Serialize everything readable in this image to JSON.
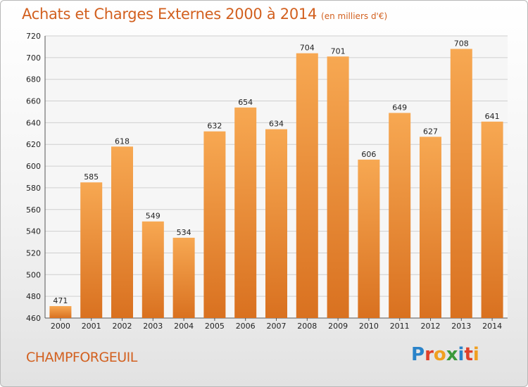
{
  "title": "Achats et Charges Externes 2000 à 2014",
  "unit_label": "(en milliers d'€)",
  "commune": "CHAMPFORGEUIL",
  "logo": {
    "text": "Proxiti",
    "letters": [
      {
        "ch": "P",
        "color": "#2a83c9"
      },
      {
        "ch": "r",
        "color": "#e0402a"
      },
      {
        "ch": "o",
        "color": "#f0a020"
      },
      {
        "ch": "x",
        "color": "#3a9a3a"
      },
      {
        "ch": "i",
        "color": "#2a83c9"
      },
      {
        "ch": "t",
        "color": "#e0402a"
      },
      {
        "ch": "i",
        "color": "#f0a020"
      }
    ]
  },
  "colors": {
    "bar_top": "#f7a852",
    "bar_bottom": "#d97120",
    "title": "#d2601f",
    "grid": "#cfcfcf"
  },
  "chart_data": {
    "type": "bar",
    "categories": [
      "2000",
      "2001",
      "2002",
      "2003",
      "2004",
      "2005",
      "2006",
      "2007",
      "2008",
      "2009",
      "2010",
      "2011",
      "2012",
      "2013",
      "2014"
    ],
    "values": [
      471,
      585,
      618,
      549,
      534,
      632,
      654,
      634,
      704,
      701,
      606,
      649,
      627,
      708,
      641
    ],
    "ylim": [
      460,
      720
    ],
    "yticks": [
      460,
      480,
      500,
      520,
      540,
      560,
      580,
      600,
      620,
      640,
      660,
      680,
      700,
      720
    ],
    "grid": true
  }
}
